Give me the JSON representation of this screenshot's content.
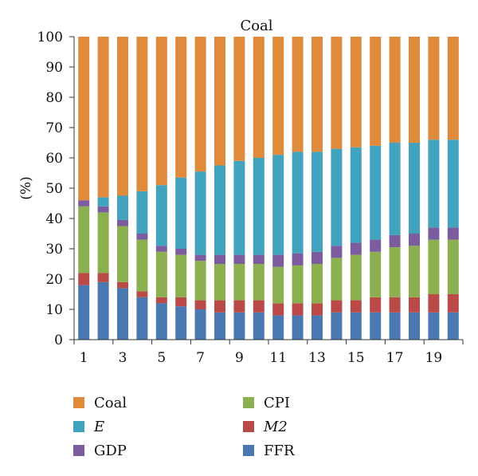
{
  "chart_data": {
    "type": "bar",
    "stacked": true,
    "title": "Coal",
    "ylabel": "(%)",
    "xlabel": "",
    "ylim": [
      0,
      100
    ],
    "yticks": [
      0,
      10,
      20,
      30,
      40,
      50,
      60,
      70,
      80,
      90,
      100
    ],
    "categories": [
      1,
      2,
      3,
      4,
      5,
      6,
      7,
      8,
      9,
      10,
      11,
      12,
      13,
      14,
      15,
      16,
      17,
      18,
      19,
      20
    ],
    "xtick_labels": [
      "1",
      "3",
      "5",
      "7",
      "9",
      "11",
      "13",
      "15",
      "17",
      "19"
    ],
    "grid": false,
    "legend_position": "bottom",
    "legend": [
      {
        "key": "coal",
        "label": "Coal",
        "italic": false
      },
      {
        "key": "cpi",
        "label": "CPI",
        "italic": false
      },
      {
        "key": "e",
        "label": "E",
        "italic": true
      },
      {
        "key": "m2",
        "label": "M2",
        "italic": true
      },
      {
        "key": "gdp",
        "label": "GDP",
        "italic": false
      },
      {
        "key": "ffr",
        "label": "FFR",
        "italic": false
      }
    ],
    "series": [
      {
        "key": "ffr",
        "name": "FFR",
        "color": "#4a78b0",
        "values": [
          18,
          19,
          17,
          14,
          12,
          11,
          10,
          9,
          9,
          9,
          8,
          8,
          8,
          9,
          9,
          9,
          9,
          9,
          9,
          9
        ]
      },
      {
        "key": "m2",
        "name": "M2",
        "color": "#b94a48",
        "values": [
          4,
          3,
          2,
          2,
          2,
          3,
          3,
          4,
          4,
          4,
          4,
          4,
          4,
          4,
          4,
          5,
          5,
          5,
          6,
          6
        ]
      },
      {
        "key": "cpi",
        "name": "CPI",
        "color": "#8cb050",
        "values": [
          22,
          20,
          18.5,
          17,
          15,
          14,
          13,
          12,
          12,
          12,
          12,
          12.5,
          13,
          14,
          15,
          15,
          16.5,
          17,
          18,
          18
        ]
      },
      {
        "key": "gdp",
        "name": "GDP",
        "color": "#7b5c9e",
        "values": [
          2,
          2,
          2,
          2,
          2,
          2,
          2,
          3,
          3,
          3,
          4,
          4,
          4,
          4,
          4,
          4,
          4,
          4,
          4,
          4
        ]
      },
      {
        "key": "e",
        "name": "E",
        "color": "#41a3bd",
        "values": [
          0,
          3,
          8,
          14,
          20,
          23.5,
          27.5,
          29.5,
          31,
          32,
          33,
          33.5,
          33,
          32,
          31.5,
          31,
          30.5,
          30,
          29,
          29
        ]
      },
      {
        "key": "coal",
        "name": "Coal",
        "color": "#e08a3c",
        "values": [
          54,
          53,
          52.5,
          51,
          49,
          46.5,
          44.5,
          42.5,
          41,
          40,
          39,
          38,
          38,
          37,
          36.5,
          36,
          35,
          35,
          34,
          34
        ]
      }
    ]
  }
}
